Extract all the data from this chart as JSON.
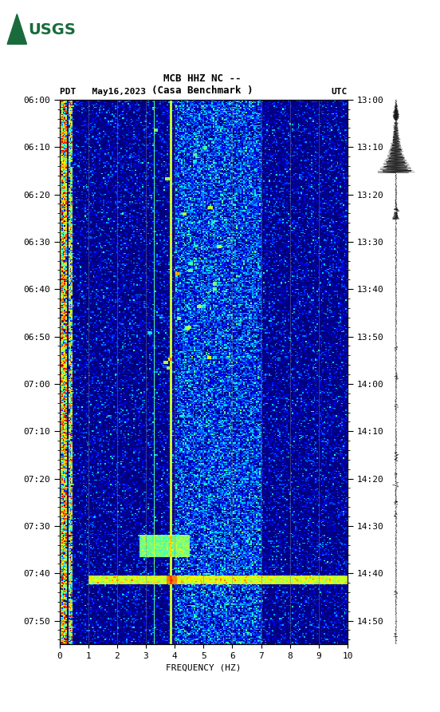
{
  "title_line1": "MCB HHZ NC --",
  "title_line2": "(Casa Benchmark )",
  "left_label": "PDT   May16,2023",
  "right_label": "UTC",
  "xlabel": "FREQUENCY (HZ)",
  "freq_ticks": [
    0,
    1,
    2,
    3,
    4,
    5,
    6,
    7,
    8,
    9,
    10
  ],
  "left_time_ticks": [
    "06:00",
    "06:10",
    "06:20",
    "06:30",
    "06:40",
    "06:50",
    "07:00",
    "07:10",
    "07:20",
    "07:30",
    "07:40",
    "07:50"
  ],
  "right_time_ticks": [
    "13:00",
    "13:10",
    "13:20",
    "13:30",
    "13:40",
    "13:50",
    "14:00",
    "14:10",
    "14:20",
    "14:30",
    "14:40",
    "14:50"
  ],
  "grid_color": "#808080",
  "bg_color": "#000010",
  "fig_bg": "#ffffff",
  "usgs_green": "#1a6b3c",
  "font_family": "monospace",
  "title_fontsize": 9,
  "label_fontsize": 8,
  "tick_fontsize": 8,
  "noise_seed": 42,
  "time_total_min": 115
}
